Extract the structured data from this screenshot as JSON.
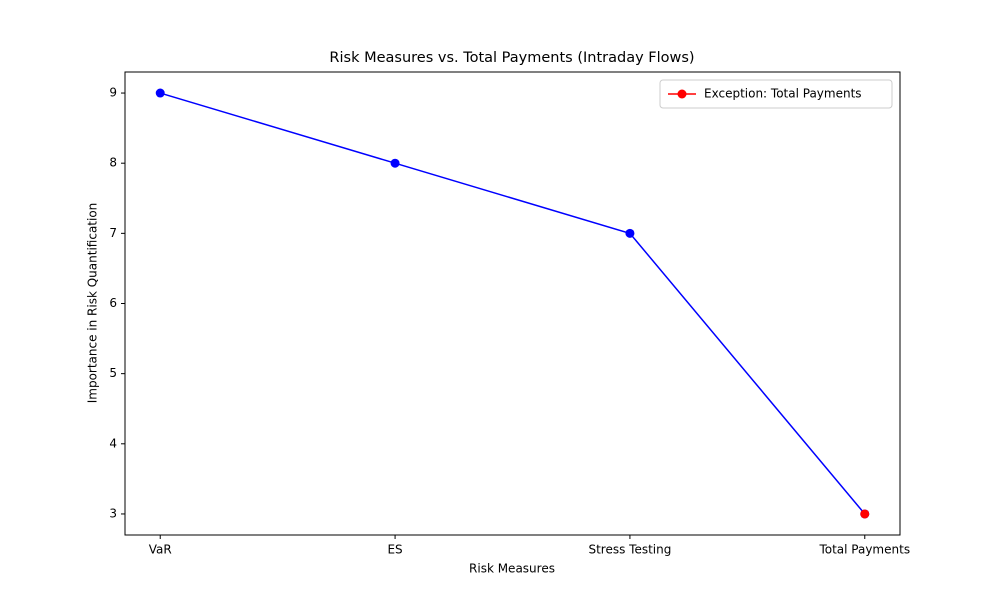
{
  "chart_data": {
    "type": "line",
    "title": "Risk Measures vs. Total Payments (Intraday Flows)",
    "x_label": "Risk Measures",
    "y_label": "Importance in Risk Quantification",
    "categories": [
      "VaR",
      "ES",
      "Stress Testing",
      "Total Payments"
    ],
    "series": [
      {
        "color": "#0000ff",
        "values": [
          9,
          8,
          7,
          3
        ]
      },
      {
        "name": "Exception: Total Payments",
        "color": "#ff0000",
        "values": [
          null,
          null,
          null,
          3
        ]
      }
    ],
    "ylim": [
      2.7,
      9.3
    ],
    "yticks": [
      3,
      4,
      5,
      6,
      7,
      8,
      9
    ],
    "grid": false,
    "legend": "upper right"
  }
}
